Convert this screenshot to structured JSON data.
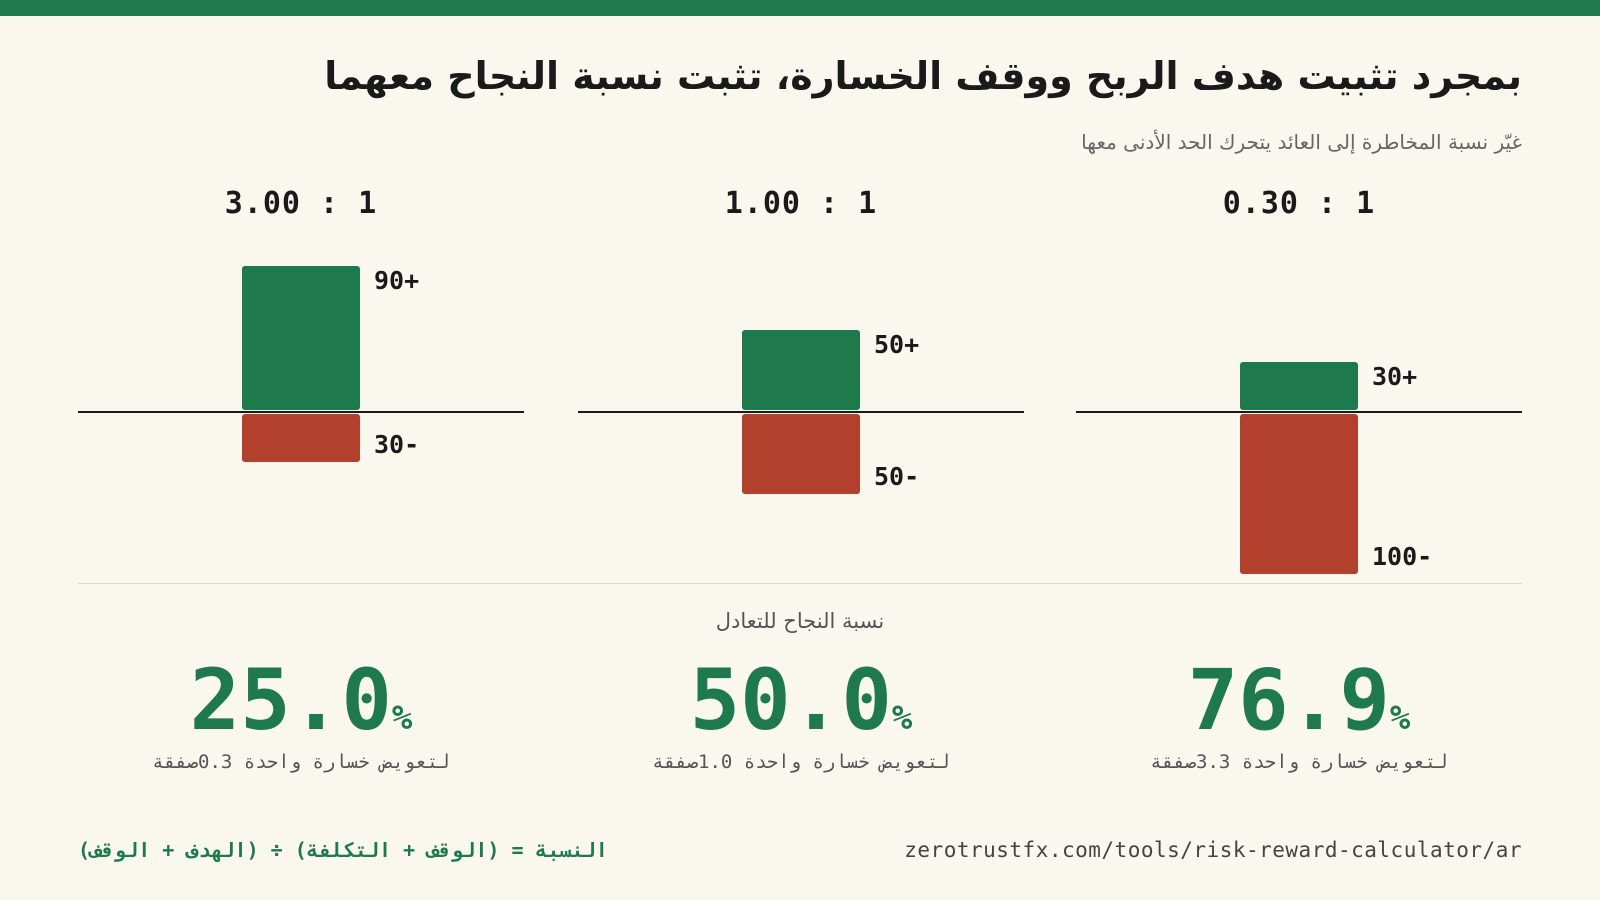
{
  "header": {
    "title": "بمجرد تثبيت هدف الربح ووقف الخسارة، تثبت نسبة النجاح معهما",
    "subtitle": "غيّر نسبة المخاطرة إلى العائد يتحرك الحد الأدنى معها"
  },
  "section_label": "نسبة النجاح للتعادل",
  "footer": {
    "formula": "النسبة = (الوقف + التكلفة) ÷ (الهدف + الوقف)",
    "url": "zerotrustfx.com/tools/risk-reward-calculator/ar"
  },
  "colors": {
    "win": "#1e7a4d",
    "loss": "#b3402c",
    "background": "#faf7ef"
  },
  "chart_data": [
    {
      "type": "bar",
      "ratio_label": "3.00 : 1",
      "categories": [
        "win",
        "loss"
      ],
      "values": [
        90,
        -30
      ],
      "value_labels": [
        "90+",
        "30-"
      ],
      "ylim": [
        -100,
        90
      ],
      "breakeven_value": "25.0",
      "breakeven_unit": "%",
      "note": "لتعويض خسارة واحدة 0.3صفقة"
    },
    {
      "type": "bar",
      "ratio_label": "1.00 : 1",
      "categories": [
        "win",
        "loss"
      ],
      "values": [
        50,
        -50
      ],
      "value_labels": [
        "50+",
        "50-"
      ],
      "ylim": [
        -100,
        90
      ],
      "breakeven_value": "50.0",
      "breakeven_unit": "%",
      "note": "لتعويض خسارة واحدة 1.0صفقة"
    },
    {
      "type": "bar",
      "ratio_label": "0.30 : 1",
      "categories": [
        "win",
        "loss"
      ],
      "values": [
        30,
        -100
      ],
      "value_labels": [
        "30+",
        "100-"
      ],
      "ylim": [
        -100,
        90
      ],
      "breakeven_value": "76.9",
      "breakeven_unit": "%",
      "note": "لتعويض خسارة واحدة 3.3صفقة"
    }
  ]
}
